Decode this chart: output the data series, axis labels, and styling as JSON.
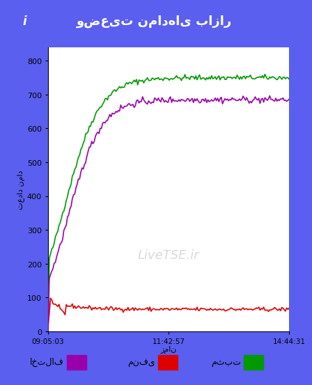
{
  "title": "وضعیت نمادهای بازار",
  "ylabel": "تعداد نماد",
  "xlabel": "زمان",
  "xtick_labels": [
    "09:05:03",
    "11:42:57",
    "14:44:31"
  ],
  "ytick_values": [
    0,
    100,
    200,
    300,
    400,
    500,
    600,
    700,
    800
  ],
  "ylim": [
    0,
    840
  ],
  "xlim": [
    0,
    200
  ],
  "green_color": "#009900",
  "red_color": "#dd0000",
  "purple_color": "#9900aa",
  "bg_color": "#ffffff",
  "outer_bg": "#5a5fef",
  "title_bg": "#4040cc",
  "title_color": "#ffffff",
  "watermark": "LiveTSE.ir",
  "legend_positive": "مثبت",
  "legend_negative": "منفی",
  "legend_diff": "اختلاف",
  "icon_i": "i"
}
